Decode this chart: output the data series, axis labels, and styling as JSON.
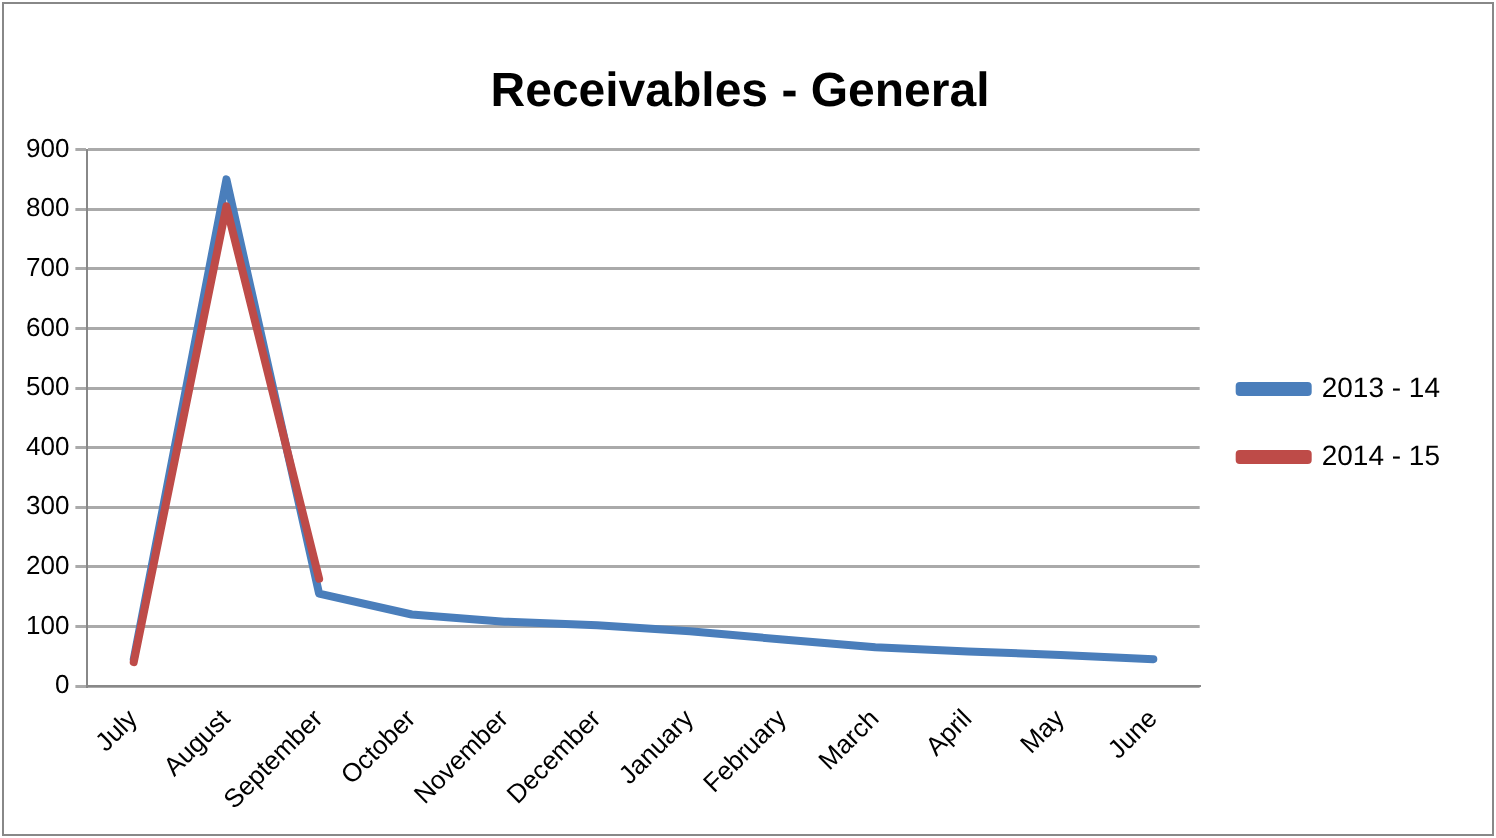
{
  "chart_data": {
    "type": "line",
    "title": "Receivables - General",
    "categories": [
      "July",
      "August",
      "September",
      "October",
      "November",
      "December",
      "January",
      "February",
      "March",
      "April",
      "May",
      "June"
    ],
    "series": [
      {
        "name": "2013 - 14",
        "color": "#4a7ebb",
        "values": [
          45,
          850,
          155,
          120,
          108,
          102,
          92,
          78,
          65,
          58,
          52,
          45
        ]
      },
      {
        "name": "2014 - 15",
        "color": "#be4b48",
        "values": [
          40,
          805,
          180,
          null,
          null,
          null,
          null,
          null,
          null,
          null,
          null,
          null
        ]
      }
    ],
    "ylim": [
      0,
      900
    ],
    "yticks": [
      0,
      100,
      200,
      300,
      400,
      500,
      600,
      700,
      800,
      900
    ],
    "grid": "y",
    "legend": "right",
    "marker": "none",
    "line_style": "solid"
  }
}
